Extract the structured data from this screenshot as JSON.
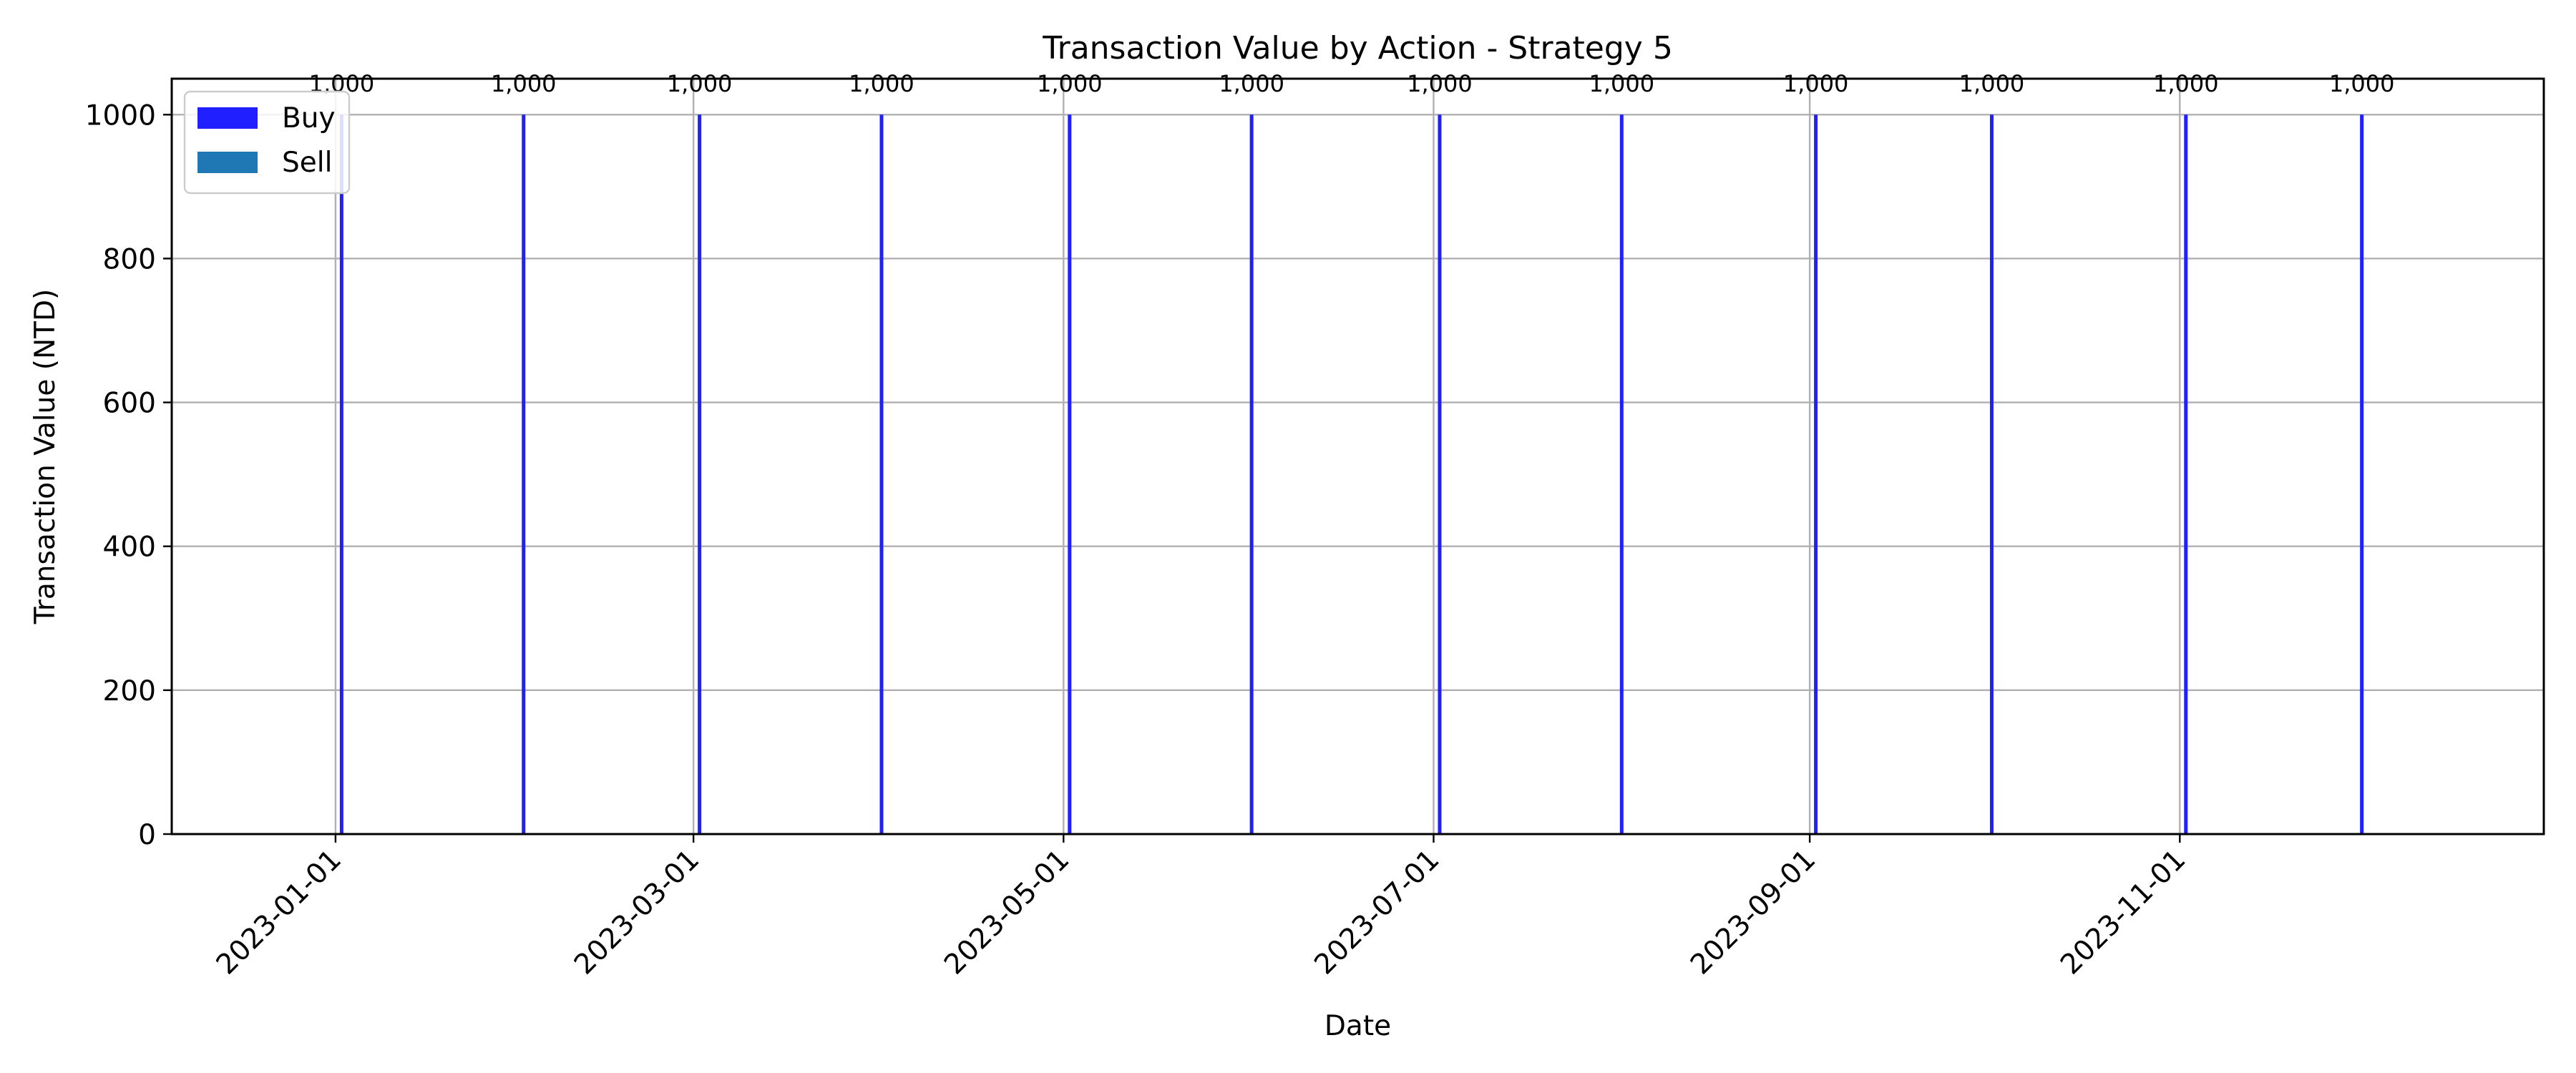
{
  "chart_data": {
    "type": "bar",
    "title": "Transaction Value by Action - Strategy 5",
    "xlabel": "Date",
    "ylabel": "Transaction Value (NTD)",
    "xlim": [
      "2022-12-05",
      "2023-12-31"
    ],
    "ylim": [
      0,
      1050
    ],
    "grid": true,
    "legend_placement": "top-left",
    "x_ticks": [
      "2023-01-01",
      "2023-03-01",
      "2023-05-01",
      "2023-07-01",
      "2023-09-01",
      "2023-11-01"
    ],
    "x_tick_rotation_deg": 45,
    "y_ticks": [
      0,
      200,
      400,
      600,
      800,
      1000
    ],
    "series": [
      {
        "name": "Buy",
        "color": "#1f1fff",
        "points": [
          {
            "x": "2023-01-02",
            "y": 1000,
            "label": "1,000"
          },
          {
            "x": "2023-02-01",
            "y": 1000,
            "label": "1,000"
          },
          {
            "x": "2023-03-02",
            "y": 1000,
            "label": "1,000"
          },
          {
            "x": "2023-04-01",
            "y": 1000,
            "label": "1,000"
          },
          {
            "x": "2023-05-02",
            "y": 1000,
            "label": "1,000"
          },
          {
            "x": "2023-06-01",
            "y": 1000,
            "label": "1,000"
          },
          {
            "x": "2023-07-02",
            "y": 1000,
            "label": "1,000"
          },
          {
            "x": "2023-08-01",
            "y": 1000,
            "label": "1,000"
          },
          {
            "x": "2023-09-02",
            "y": 1000,
            "label": "1,000"
          },
          {
            "x": "2023-10-01",
            "y": 1000,
            "label": "1,000"
          },
          {
            "x": "2023-11-02",
            "y": 1000,
            "label": "1,000"
          },
          {
            "x": "2023-12-01",
            "y": 1000,
            "label": "1,000"
          }
        ]
      },
      {
        "name": "Sell",
        "color": "#1f77b4",
        "points": []
      }
    ]
  }
}
